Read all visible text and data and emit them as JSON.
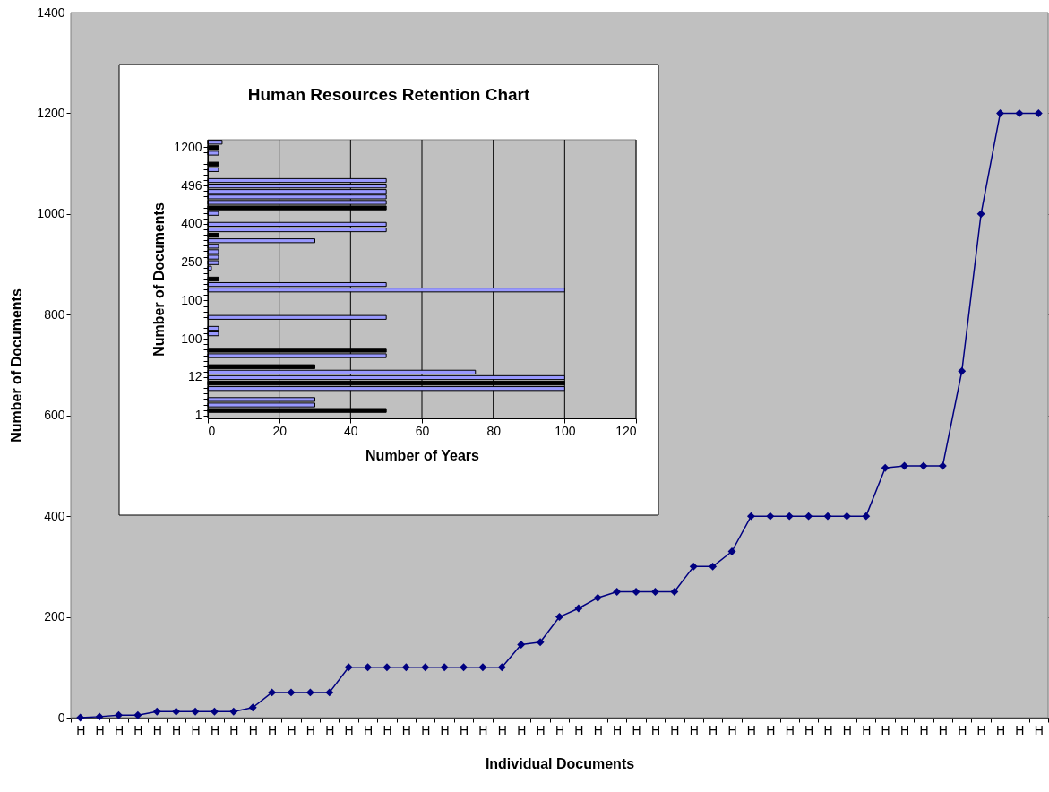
{
  "chart_data": [
    {
      "type": "line",
      "xlabel": "Individual Documents",
      "ylabel": "Number of Documents",
      "categories": [
        "H",
        "H",
        "H",
        "H",
        "H",
        "H",
        "H",
        "H",
        "H",
        "H",
        "H",
        "H",
        "H",
        "H",
        "H",
        "H",
        "H",
        "H",
        "H",
        "H",
        "H",
        "H",
        "H",
        "H",
        "H",
        "H",
        "H",
        "H",
        "H",
        "H",
        "H",
        "H",
        "H",
        "H",
        "H",
        "H",
        "H",
        "H",
        "H",
        "H",
        "H",
        "H",
        "H",
        "H",
        "H",
        "H",
        "H",
        "H",
        "H",
        "H",
        "H"
      ],
      "values": [
        0,
        2,
        5,
        5,
        12,
        12,
        12,
        12,
        12,
        20,
        50,
        50,
        50,
        50,
        100,
        100,
        100,
        100,
        100,
        100,
        100,
        100,
        100,
        145,
        150,
        200,
        217,
        238,
        250,
        250,
        250,
        250,
        300,
        300,
        330,
        400,
        400,
        400,
        400,
        400,
        400,
        400,
        496,
        500,
        500,
        500,
        688,
        1000,
        1200,
        1200,
        1200
      ],
      "color": "#000080",
      "marker": "diamond",
      "line_style": "solid",
      "ylim": [
        0,
        1400
      ],
      "yticks": [
        0,
        200,
        400,
        600,
        800,
        1000,
        1200,
        1400
      ],
      "grid": "y"
    },
    {
      "type": "bar",
      "orientation": "horizontal",
      "title": "Human Resources Retention Chart",
      "xlabel": "Number of Years",
      "ylabel": "Number of Documents",
      "categories": [
        null,
        "1200",
        null,
        null,
        null,
        null,
        null,
        null,
        "496",
        null,
        null,
        null,
        null,
        null,
        null,
        "400",
        null,
        null,
        null,
        null,
        null,
        null,
        "250",
        null,
        null,
        null,
        null,
        null,
        null,
        "100",
        null,
        null,
        null,
        null,
        null,
        null,
        "100",
        null,
        null,
        null,
        null,
        null,
        null,
        "12",
        null,
        null,
        null,
        null,
        null,
        null,
        "1"
      ],
      "values": [
        4,
        3,
        3,
        null,
        3,
        3,
        null,
        50,
        50,
        50,
        50,
        50,
        50,
        3,
        null,
        50,
        50,
        3,
        30,
        3,
        3,
        3,
        3,
        1,
        null,
        3,
        50,
        100,
        null,
        null,
        null,
        null,
        50,
        null,
        3,
        3,
        null,
        null,
        50,
        50,
        null,
        30,
        75,
        100,
        100,
        100,
        null,
        30,
        30,
        50,
        null
      ],
      "colors": [
        "#9999ff",
        "#000000",
        "#9999ff",
        "#9999ff",
        "#000000",
        "#9999ff",
        "#9999ff",
        "#9999ff",
        "#9999ff",
        "#9999ff",
        "#9999ff",
        "#9999ff",
        "#000000",
        "#9999ff",
        "#9999ff",
        "#9999ff",
        "#9999ff",
        "#000000",
        "#9999ff",
        "#9999ff",
        "#9999ff",
        "#9999ff",
        "#9999ff",
        "#9999ff",
        "#9999ff",
        "#000000",
        "#9999ff",
        "#9999ff",
        "#9999ff",
        "#9999ff",
        "#9999ff",
        "#9999ff",
        "#9999ff",
        "#9999ff",
        "#9999ff",
        "#9999ff",
        "#9999ff",
        "#9999ff",
        "#000000",
        "#9999ff",
        "#9999ff",
        "#000000",
        "#9999ff",
        "#9999ff",
        "#000000",
        "#9999ff",
        "#9999ff",
        "#9999ff",
        "#9999ff",
        "#000000",
        "#9999ff"
      ],
      "xlim": [
        0,
        120
      ],
      "xticks": [
        0,
        20,
        40,
        60,
        80,
        100,
        120
      ],
      "grid": "x"
    }
  ]
}
